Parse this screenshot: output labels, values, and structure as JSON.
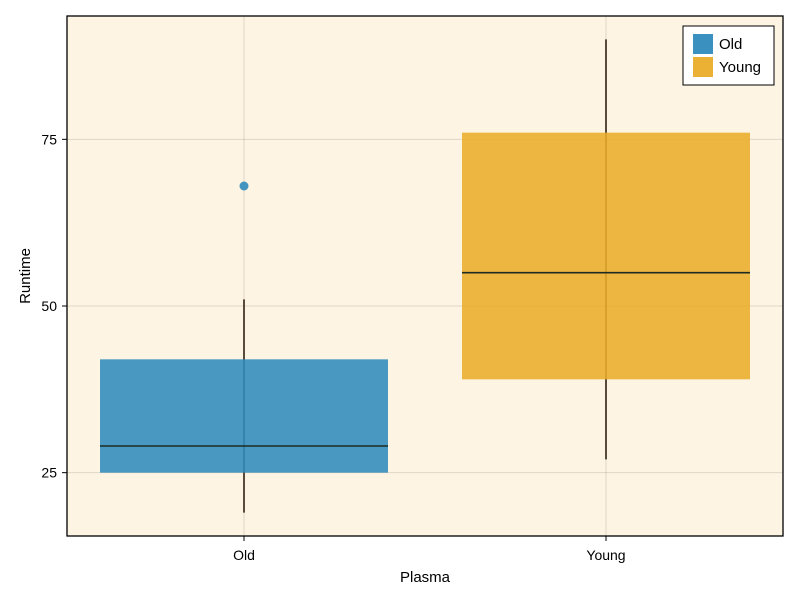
{
  "chart_data": {
    "type": "box",
    "xlabel": "Plasma",
    "ylabel": "Runtime",
    "categories": [
      "Old",
      "Young"
    ],
    "ylim": [
      15.5,
      93.5
    ],
    "yticks": [
      25,
      50,
      75
    ],
    "grid": true,
    "legend_position": "top-right",
    "background": "#fdf4e3",
    "series": [
      {
        "name": "Old",
        "color": "#2f8bbd",
        "whisker_low": 19,
        "q1": 25,
        "median": 29,
        "q3": 42,
        "whisker_high": 51,
        "outliers": [
          68
        ]
      },
      {
        "name": "Young",
        "color": "#eaad2a",
        "whisker_low": 27,
        "q1": 39,
        "median": 55,
        "q3": 76,
        "whisker_high": 90,
        "outliers": []
      }
    ]
  }
}
